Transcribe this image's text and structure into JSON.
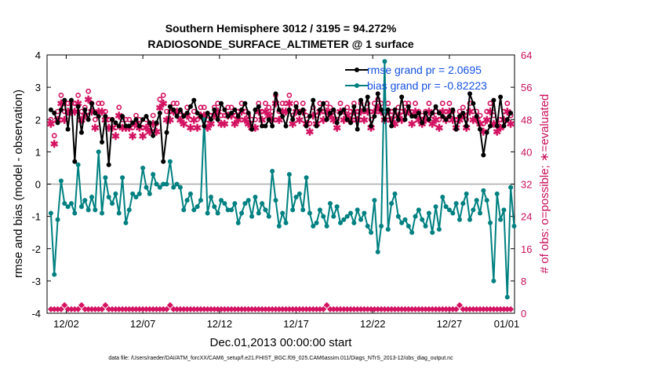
{
  "chart_data": {
    "type": "line",
    "title_line1": "Southern Hemisphere 3012 / 3195 = 94.272%",
    "title_line2": "RADIOSONDE_SURFACE_ALTIMETER @ 1 surface",
    "xlabel": "Dec.01,2013 00:00:00 start",
    "ylabel": "rmse and bias (model - observation)",
    "ylabel_right": "# of obs: o=possible; ∗=evaluated",
    "footnote": "data file: /Users/raeder/DAI/ATM_forcXX/CAM6_setup/f.e21.FHIST_BGC.f09_025.CAM6assim.011/Diags_NTrS_2013-12/obs_diag_output.nc",
    "xlim": [
      0.75,
      31.25
    ],
    "ylim": [
      -4,
      4
    ],
    "ylim_right": [
      0,
      64
    ],
    "x_ticks": [
      {
        "x": 2,
        "label": "12/02"
      },
      {
        "x": 7,
        "label": "12/07"
      },
      {
        "x": 12,
        "label": "12/12"
      },
      {
        "x": 17,
        "label": "12/17"
      },
      {
        "x": 22,
        "label": "12/22"
      },
      {
        "x": 27,
        "label": "12/27"
      },
      {
        "x": 32,
        "label": "01/01"
      }
    ],
    "y_ticks": [
      "-4",
      "-3",
      "-2",
      "-1",
      "0",
      "1",
      "2",
      "3",
      "4"
    ],
    "y_ticks_right": [
      "0",
      "8",
      "16",
      "24",
      "32",
      "40",
      "48",
      "56",
      "64"
    ],
    "legend": {
      "position": "top-right",
      "rmse_label": "rmse grand pr = 2.0695",
      "bias_label": "bias grand pr = -0.82223"
    },
    "colors": {
      "rmse": "#000000",
      "bias": "#008080",
      "counts": "#d41462",
      "zero_line": "#aaaaaa"
    },
    "series": [
      {
        "name": "rmse",
        "values": [
          2.3,
          2.2,
          1.9,
          2.3,
          2.6,
          1.7,
          2.6,
          0.7,
          2.4,
          1.6,
          2.3,
          2.0,
          2.5,
          2.2,
          2.1,
          1.3,
          2.1,
          0.6,
          2.0,
          1.9,
          1.8,
          2.1,
          1.8,
          1.8,
          1.9,
          2.0,
          1.8,
          2.0,
          2.1,
          1.9,
          1.5,
          1.9,
          2.2,
          0.7,
          1.6,
          2.4,
          2.3,
          2.1,
          2.3,
          2.1,
          2.2,
          2.4,
          2.6,
          2.2,
          2.1,
          1.8,
          2.2,
          2.0,
          2.3,
          2.0,
          2.5,
          2.3,
          2.1,
          2.2,
          2.3,
          2.1,
          2.3,
          2.5,
          2.2,
          1.7,
          2.3,
          2.4,
          1.8,
          1.8,
          2.0,
          1.8,
          2.8,
          2.3,
          2.1,
          1.8,
          2.3,
          2.0,
          2.4,
          2.2,
          2.3,
          1.8,
          2.1,
          2.6,
          1.8,
          2.3,
          2.5,
          2.0,
          2.2,
          2.3,
          1.9,
          2.2,
          2.3,
          2.0,
          1.9,
          2.4,
          1.7,
          2.6,
          2.3,
          2.7,
          1.8,
          2.1,
          2.8,
          2.3,
          2.0,
          2.3,
          1.8,
          2.3,
          2.0,
          2.7,
          2.0,
          2.4,
          2.1,
          2.1,
          2.2,
          1.9,
          2.2,
          2.0,
          2.2,
          2.4,
          2.2,
          2.1,
          2.0,
          2.1,
          2.3,
          1.7,
          2.1,
          2.2,
          1.8,
          2.8,
          2.5,
          2.1,
          1.7,
          0.9,
          1.6,
          1.8,
          2.6,
          1.8,
          2.7,
          1.8,
          2.0,
          2.2
        ]
      },
      {
        "name": "bias",
        "values": [
          -0.9,
          -2.8,
          -1.1,
          0.1,
          -0.6,
          -0.7,
          -0.6,
          -0.9,
          0.6,
          -0.7,
          -0.5,
          -0.8,
          -0.4,
          -0.8,
          1.0,
          -0.9,
          0.2,
          -0.4,
          -0.6,
          -0.3,
          -0.9,
          0.2,
          -1.2,
          -0.8,
          -0.3,
          -0.4,
          -0.3,
          0.5,
          -0.1,
          -0.3,
          0.3,
          0.0,
          -0.1,
          0.0,
          0.0,
          0.7,
          -0.1,
          0.0,
          -0.1,
          -0.8,
          -0.5,
          -0.3,
          -0.8,
          -0.7,
          -0.5,
          2.0,
          -0.9,
          -0.4,
          -0.7,
          -0.9,
          -0.5,
          -0.6,
          -0.8,
          -0.8,
          -0.6,
          -1.2,
          -0.9,
          -0.6,
          -0.5,
          -1.0,
          -0.4,
          -0.9,
          -0.6,
          -0.8,
          -1.0,
          0.4,
          -0.5,
          -1.3,
          -0.9,
          -1.2,
          0.3,
          -0.8,
          -0.4,
          -0.3,
          -0.8,
          0.2,
          -0.9,
          -1.3,
          -1.2,
          -0.8,
          -1.0,
          -1.3,
          -0.6,
          -1.0,
          -0.7,
          -1.2,
          -1.1,
          -1.0,
          -0.9,
          -1.2,
          -0.8,
          -1.1,
          -0.9,
          -1.3,
          -1.5,
          -0.5,
          -2.1,
          -1.3,
          3.8,
          -1.4,
          -0.6,
          -0.3,
          -1.0,
          -1.2,
          -1.1,
          -1.3,
          -1.5,
          -1.0,
          -0.8,
          -1.1,
          -1.3,
          -0.9,
          -1.5,
          -0.7,
          -1.4,
          -0.4,
          -0.7,
          -0.8,
          -0.9,
          -0.6,
          -1.1,
          -0.6,
          -0.3,
          -1.1,
          -0.8,
          -0.5,
          -0.9,
          -0.2,
          -0.5,
          -1.2,
          -3.0,
          -0.3,
          -1.1,
          -0.8,
          -3.5,
          -0.1,
          -1.3
        ]
      },
      {
        "name": "obs possible",
        "values": [
          48,
          44,
          50,
          54,
          50,
          52,
          52,
          52,
          54,
          50,
          51,
          55,
          52,
          48,
          52,
          52,
          50,
          48,
          48,
          46,
          51,
          48,
          48,
          48,
          46,
          49,
          48,
          46,
          48,
          47,
          49,
          47,
          53,
          54,
          50,
          50,
          52,
          52,
          50,
          49,
          51,
          48,
          50,
          48,
          51,
          51,
          48,
          49,
          51,
          52,
          49,
          49,
          51,
          51,
          49,
          50,
          52,
          50,
          49,
          48,
          48,
          52,
          50,
          52,
          51,
          50,
          54,
          50,
          52,
          52,
          54,
          49,
          52,
          50,
          52,
          49,
          47,
          51,
          49,
          52,
          50,
          52,
          51,
          50,
          48,
          52,
          50,
          51,
          50,
          52,
          50,
          52,
          50,
          52,
          48,
          52,
          53,
          52,
          50,
          52,
          50,
          49,
          51,
          50,
          52,
          52,
          49,
          52,
          50,
          49,
          50,
          52,
          49,
          50,
          48,
          52,
          50,
          52,
          50,
          48,
          50,
          51,
          48,
          52,
          50,
          50,
          49,
          47,
          50,
          52,
          49,
          47,
          48,
          50,
          52,
          49
        ]
      },
      {
        "name": "obs evaluated",
        "values": [
          47,
          42,
          48,
          52,
          48,
          50,
          50,
          50,
          52,
          48,
          49,
          53,
          50,
          46,
          50,
          50,
          48,
          46,
          46,
          44,
          49,
          46,
          46,
          46,
          44,
          47,
          46,
          44,
          46,
          45,
          47,
          45,
          51,
          52,
          48,
          48,
          50,
          50,
          48,
          47,
          49,
          46,
          48,
          46,
          49,
          49,
          46,
          47,
          49,
          50,
          47,
          47,
          49,
          49,
          47,
          48,
          50,
          48,
          47,
          46,
          46,
          50,
          48,
          50,
          49,
          48,
          52,
          48,
          50,
          50,
          52,
          47,
          50,
          48,
          50,
          47,
          45,
          49,
          47,
          50,
          48,
          50,
          49,
          48,
          46,
          50,
          48,
          49,
          48,
          50,
          48,
          50,
          48,
          50,
          46,
          50,
          51,
          50,
          48,
          50,
          48,
          47,
          49,
          48,
          50,
          50,
          47,
          50,
          48,
          47,
          48,
          50,
          47,
          48,
          46,
          50,
          48,
          50,
          48,
          46,
          48,
          49,
          46,
          50,
          48,
          48,
          47,
          45,
          48,
          50,
          47,
          45,
          46,
          48,
          50,
          47
        ]
      },
      {
        "name": "obs possible low",
        "values": [
          1,
          1,
          1,
          1,
          2,
          1,
          1,
          1,
          1,
          2,
          1,
          1,
          1,
          1,
          1,
          1,
          2,
          1,
          1,
          1,
          1,
          1,
          1,
          1,
          1,
          1,
          1,
          1,
          1,
          1,
          1,
          1,
          1,
          1,
          1,
          2,
          1,
          1,
          1,
          1,
          1,
          1,
          1,
          1,
          1,
          1,
          1,
          1,
          1,
          1,
          1,
          1,
          1,
          1,
          1,
          1,
          1,
          1,
          1,
          1,
          1,
          1,
          1,
          1,
          1,
          1,
          1,
          1,
          1,
          1,
          1,
          1,
          1,
          1,
          1,
          1,
          1,
          1,
          1,
          1,
          1,
          2,
          1,
          1,
          1,
          1,
          1,
          1,
          1,
          1,
          1,
          1,
          1,
          1,
          1,
          1,
          1,
          1,
          1,
          1,
          1,
          1,
          1,
          1,
          1,
          1,
          1,
          1,
          1,
          1,
          1,
          1,
          1,
          1,
          1,
          1,
          1,
          1,
          1,
          1,
          2,
          1,
          1,
          1,
          1,
          1,
          1,
          1,
          1,
          1,
          1,
          1,
          1,
          1,
          1,
          1
        ]
      },
      {
        "name": "obs evaluated low",
        "values": [
          1,
          1,
          1,
          1,
          1,
          1,
          1,
          1,
          1,
          1,
          1,
          1,
          1,
          1,
          1,
          1,
          1,
          1,
          1,
          1,
          1,
          1,
          1,
          1,
          1,
          1,
          1,
          1,
          1,
          1,
          1,
          1,
          1,
          1,
          1,
          1,
          1,
          1,
          1,
          1,
          1,
          1,
          1,
          1,
          1,
          1,
          1,
          1,
          1,
          1,
          1,
          1,
          1,
          1,
          1,
          1,
          1,
          1,
          1,
          1,
          1,
          1,
          1,
          1,
          1,
          1,
          1,
          1,
          1,
          1,
          1,
          1,
          1,
          1,
          1,
          1,
          1,
          1,
          1,
          1,
          1,
          1,
          1,
          1,
          1,
          1,
          1,
          1,
          1,
          1,
          1,
          1,
          1,
          1,
          1,
          1,
          1,
          1,
          1,
          1,
          1,
          1,
          1,
          1,
          1,
          1,
          1,
          1,
          1,
          1,
          1,
          1,
          1,
          1,
          1,
          1,
          1,
          1,
          1,
          1,
          1,
          1,
          1,
          1,
          1,
          1,
          1,
          1,
          1,
          1,
          1,
          1,
          1,
          1,
          1,
          1
        ]
      }
    ]
  }
}
